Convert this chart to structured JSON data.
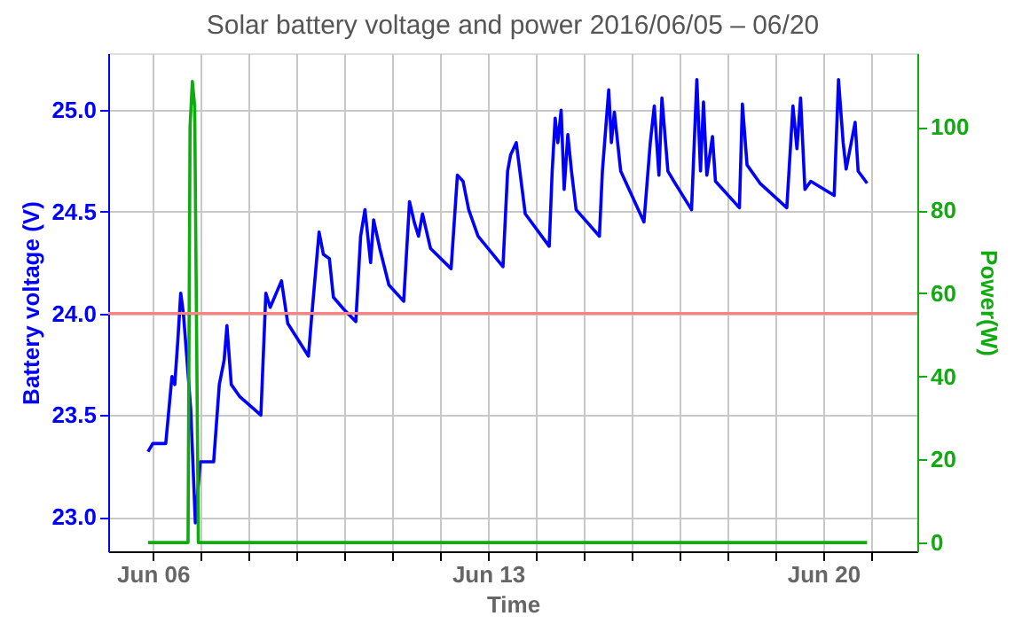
{
  "chart_data": {
    "type": "line",
    "title": "Solar battery voltage and power   2016/06/05 – 06/20",
    "xlabel": "Time",
    "ylabel": "Battery voltage (V)",
    "y2label": "Power(W)",
    "xlim": [
      "2016-06-05T01:40",
      "2016-06-21T23:10"
    ],
    "xticks": [
      {
        "value": "2016-06-06",
        "label": "Jun 06"
      },
      {
        "value": "2016-06-07",
        "label": null
      },
      {
        "value": "2016-06-08",
        "label": null
      },
      {
        "value": "2016-06-09",
        "label": null
      },
      {
        "value": "2016-06-10",
        "label": null
      },
      {
        "value": "2016-06-11",
        "label": null
      },
      {
        "value": "2016-06-12",
        "label": null
      },
      {
        "value": "2016-06-13",
        "label": "Jun 13"
      },
      {
        "value": "2016-06-14",
        "label": null
      },
      {
        "value": "2016-06-15",
        "label": null
      },
      {
        "value": "2016-06-16",
        "label": null
      },
      {
        "value": "2016-06-17",
        "label": null
      },
      {
        "value": "2016-06-18",
        "label": null
      },
      {
        "value": "2016-06-19",
        "label": null
      },
      {
        "value": "2016-06-20",
        "label": "Jun 20"
      },
      {
        "value": "2016-06-21",
        "label": null
      }
    ],
    "ylim": [
      22.83,
      25.28
    ],
    "yticks": [
      {
        "value": 23,
        "label": "23.0"
      },
      23.5,
      {
        "value": 24,
        "label": "24.0"
      },
      24.5,
      {
        "value": 25,
        "label": "25.0"
      }
    ],
    "y2lim": [
      -2.1,
      117.8
    ],
    "y2ticks": [
      0,
      20,
      40,
      60,
      80,
      100
    ],
    "grid": true,
    "line_style": "solid",
    "ref_lines": [
      {
        "axis": "y",
        "value": 24.0,
        "color": "#ff8080"
      }
    ],
    "series": [
      {
        "color": "#0000ff",
        "x": [
          "2016-06-05T21:36",
          "2016-06-06T00:00",
          "2016-06-06T06:30",
          "2016-06-06T09:36",
          "2016-06-06T11:00",
          "2016-06-06T12:30",
          "2016-06-06T14:00",
          "2016-06-06T15:20",
          "2016-06-06T17:00",
          "2016-06-06T19:00",
          "2016-06-06T21:20",
          "2016-06-06T23:45",
          "2016-06-07T06:30",
          "2016-06-07T09:20",
          "2016-06-07T11:45",
          "2016-06-07T13:10",
          "2016-06-07T15:20",
          "2016-06-07T19:40",
          "2016-06-08T06:10",
          "2016-06-08T08:40",
          "2016-06-08T10:50",
          "2016-06-08T16:30",
          "2016-06-08T19:40",
          "2016-06-09T06:00",
          "2016-06-09T07:30",
          "2016-06-09T11:20",
          "2016-06-09T13:30",
          "2016-06-09T16:30",
          "2016-06-09T18:30",
          "2016-06-09T23:45",
          "2016-06-10T05:45",
          "2016-06-10T08:10",
          "2016-06-10T10:20",
          "2016-06-10T13:10",
          "2016-06-10T14:40",
          "2016-06-10T17:45",
          "2016-06-10T22:20",
          "2016-06-11T05:45",
          "2016-06-11T08:40",
          "2016-06-11T11:00",
          "2016-06-11T13:10",
          "2016-06-11T15:10",
          "2016-06-11T19:10",
          "2016-06-12T05:30",
          "2016-06-12T08:40",
          "2016-06-12T11:30",
          "2016-06-12T14:20",
          "2016-06-12T19:00",
          "2016-06-13T07:30",
          "2016-06-13T09:50",
          "2016-06-13T11:20",
          "2016-06-13T14:10",
          "2016-06-13T18:40",
          "2016-06-14T06:40",
          "2016-06-14T08:10",
          "2016-06-14T09:40",
          "2016-06-14T11:00",
          "2016-06-14T12:40",
          "2016-06-14T14:10",
          "2016-06-14T16:00",
          "2016-06-14T17:50",
          "2016-06-14T20:10",
          "2016-06-15T07:50",
          "2016-06-15T09:20",
          "2016-06-15T12:30",
          "2016-06-15T13:50",
          "2016-06-15T15:20",
          "2016-06-15T18:30",
          "2016-06-16T06:10",
          "2016-06-16T09:20",
          "2016-06-16T11:20",
          "2016-06-16T13:40",
          "2016-06-16T15:10",
          "2016-06-16T18:10",
          "2016-06-16T21:10",
          "2016-06-17T06:00",
          "2016-06-17T08:40",
          "2016-06-17T10:30",
          "2016-06-17T12:00",
          "2016-06-17T13:40",
          "2016-06-17T16:30",
          "2016-06-17T18:00",
          "2016-06-18T06:00",
          "2016-06-18T07:30",
          "2016-06-18T09:50",
          "2016-06-18T16:20",
          "2016-06-19T05:45",
          "2016-06-19T08:50",
          "2016-06-19T10:50",
          "2016-06-19T12:40",
          "2016-06-19T14:50",
          "2016-06-19T17:45",
          "2016-06-20T05:30",
          "2016-06-20T07:40",
          "2016-06-20T10:00",
          "2016-06-20T11:30",
          "2016-06-20T16:00",
          "2016-06-20T17:30",
          "2016-06-20T22:00"
        ],
        "values": [
          23.32,
          23.36,
          23.36,
          23.69,
          23.65,
          23.86,
          24.1,
          24.0,
          23.79,
          23.53,
          22.97,
          23.27,
          23.27,
          23.65,
          23.77,
          23.94,
          23.65,
          23.59,
          23.5,
          24.1,
          24.03,
          24.16,
          23.95,
          23.79,
          23.97,
          24.4,
          24.29,
          24.27,
          24.08,
          24.02,
          23.96,
          24.38,
          24.51,
          24.25,
          24.46,
          24.32,
          24.14,
          24.06,
          24.55,
          24.45,
          24.38,
          24.49,
          24.32,
          24.22,
          24.68,
          24.65,
          24.51,
          24.38,
          24.23,
          24.7,
          24.78,
          24.84,
          24.49,
          24.33,
          24.7,
          24.96,
          24.84,
          25.0,
          24.61,
          24.88,
          24.7,
          24.51,
          24.38,
          24.7,
          25.1,
          24.84,
          24.99,
          24.7,
          24.45,
          24.84,
          25.02,
          24.68,
          25.06,
          24.7,
          24.65,
          24.51,
          25.15,
          24.7,
          25.04,
          24.68,
          24.87,
          24.65,
          24.52,
          25.03,
          24.73,
          24.64,
          24.52,
          25.02,
          24.81,
          25.06,
          24.61,
          24.65,
          24.58,
          25.15,
          24.84,
          24.71,
          24.94,
          24.7,
          24.64
        ]
      },
      {
        "color": "#11aa11",
        "axis": "y2",
        "x": [
          "2016-06-05T21:36",
          "2016-06-06T17:40",
          "2016-06-06T18:40",
          "2016-06-06T19:50",
          "2016-06-06T21:00",
          "2016-06-06T22:50",
          "2016-06-20T22:00"
        ],
        "values": [
          0,
          0,
          100,
          111,
          105,
          0,
          0
        ]
      }
    ]
  }
}
